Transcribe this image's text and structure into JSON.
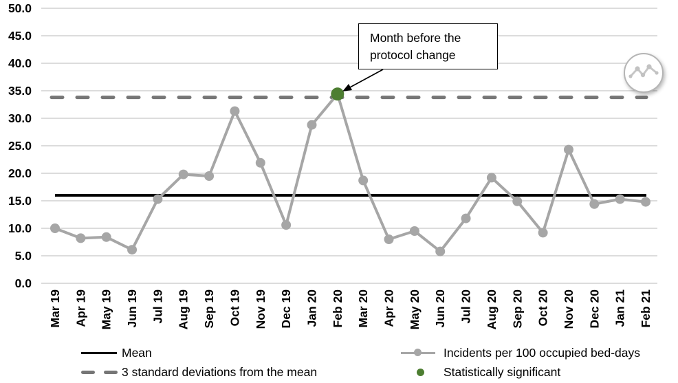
{
  "chart_data": {
    "type": "line",
    "title": "",
    "xlabel": "",
    "ylabel": "",
    "ylim": [
      0,
      50
    ],
    "ytick_step": 5,
    "ytick_decimals": 1,
    "grid": true,
    "legend_position": "bottom",
    "categories": [
      "Mar 19",
      "Apr 19",
      "May 19",
      "Jun 19",
      "Jul 19",
      "Aug 19",
      "Sep 19",
      "Oct 19",
      "Nov 19",
      "Dec 19",
      "Jan 20",
      "Feb 20",
      "Mar 20",
      "Apr 20",
      "May 20",
      "Jun 20",
      "Jul 20",
      "Aug 20",
      "Sep 20",
      "Oct 20",
      "Nov 20",
      "Dec 20",
      "Jan 21",
      "Feb 21"
    ],
    "series": [
      {
        "name": "Incidents per 100 occupied bed-days",
        "values": [
          10.0,
          8.2,
          8.4,
          6.1,
          15.3,
          19.8,
          19.5,
          31.3,
          21.9,
          10.6,
          28.8,
          34.4,
          18.7,
          8.0,
          9.5,
          5.8,
          11.8,
          19.2,
          14.9,
          9.2,
          24.3,
          14.4,
          15.3,
          14.8
        ]
      }
    ],
    "reference_lines": [
      {
        "name": "Mean",
        "value": 16.0,
        "style": "solid-black"
      },
      {
        "name": "3 standard deviations from the mean",
        "value": 33.8,
        "style": "dashed-gray"
      }
    ],
    "significant_point": {
      "category": "Feb 20",
      "index": 11,
      "value": 34.4,
      "label": "Statistically significant"
    },
    "annotation": {
      "text": "Month before the protocol change",
      "target_category": "Feb 20"
    }
  },
  "legend": {
    "mean": "Mean",
    "sd": "3 standard deviations from the mean",
    "incidents": "Incidents per 100 occupied bed-days",
    "significant": "Statistically significant"
  },
  "callout": {
    "text": "Month before the protocol change"
  },
  "icons": {
    "badge": "line-chart-sparkline-icon"
  },
  "colors": {
    "series_line": "#a6a6a6",
    "marker": "#a6a6a6",
    "mean_line": "#000000",
    "sd_line": "#767676",
    "significant": "#4d7e31",
    "gridline": "#c6c6c6",
    "text": "#000000",
    "background": "#ffffff"
  }
}
